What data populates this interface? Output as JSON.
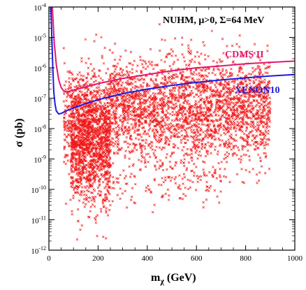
{
  "chart_data": {
    "type": "scatter",
    "title": "",
    "annotation": {
      "prefix": "NUHM, ",
      "mu": "μ",
      "mu_cond": ">0, ",
      "sigma": "Σ",
      "sigma_val": "=64 MeV"
    },
    "xlabel": {
      "main": "m",
      "sub": "χ",
      "unit": " (GeV)"
    },
    "ylabel": "σ (pb)",
    "xlim": [
      0,
      1000
    ],
    "ylim_log10": [
      -12,
      -4
    ],
    "y_scale": "log",
    "x_ticks": [
      0,
      200,
      400,
      600,
      800,
      1000
    ],
    "y_tick_exponents": [
      -12,
      -11,
      -10,
      -9,
      -8,
      -7,
      -6,
      -5,
      -4
    ],
    "y_tick_base": "10",
    "grid": false,
    "colors": {
      "points": "#f01818",
      "cdms": "#e0186e",
      "xenon": "#1a1ae0"
    },
    "scatter_clusters": [
      {
        "x_range": [
          60,
          900
        ],
        "log_center": -7.6,
        "log_spread": 1.1,
        "count": 2600
      },
      {
        "x_range": [
          90,
          250
        ],
        "log_center": -8.6,
        "log_spread": 1.3,
        "count": 1200
      },
      {
        "x_range": [
          250,
          900
        ],
        "log_center": -6.8,
        "log_spread": 0.9,
        "count": 700
      },
      {
        "x_range": [
          120,
          700
        ],
        "log_center": -9.8,
        "log_spread": 0.5,
        "count": 150
      }
    ],
    "series": [
      {
        "name": "CDMS II",
        "color": "#e0186e",
        "x": [
          14,
          22,
          30,
          40,
          50,
          60,
          70,
          80,
          100,
          150,
          200,
          300,
          400,
          500,
          600,
          700,
          800,
          900,
          1000
        ],
        "log10_y": [
          -4.0,
          -5.2,
          -5.9,
          -6.4,
          -6.65,
          -6.76,
          -6.79,
          -6.78,
          -6.74,
          -6.63,
          -6.52,
          -6.35,
          -6.22,
          -6.1,
          -6.0,
          -5.94,
          -5.87,
          -5.82,
          -5.78
        ]
      },
      {
        "name": "XENON10",
        "color": "#1a1ae0",
        "x": [
          8,
          12,
          16,
          20,
          25,
          30,
          40,
          50,
          60,
          80,
          100,
          150,
          200,
          300,
          400,
          500,
          600,
          700,
          800,
          900,
          1000
        ],
        "log10_y": [
          -4.0,
          -5.0,
          -6.0,
          -6.8,
          -7.2,
          -7.42,
          -7.52,
          -7.5,
          -7.46,
          -7.38,
          -7.32,
          -7.18,
          -7.05,
          -6.85,
          -6.7,
          -6.58,
          -6.48,
          -6.4,
          -6.33,
          -6.27,
          -6.22
        ]
      }
    ]
  }
}
